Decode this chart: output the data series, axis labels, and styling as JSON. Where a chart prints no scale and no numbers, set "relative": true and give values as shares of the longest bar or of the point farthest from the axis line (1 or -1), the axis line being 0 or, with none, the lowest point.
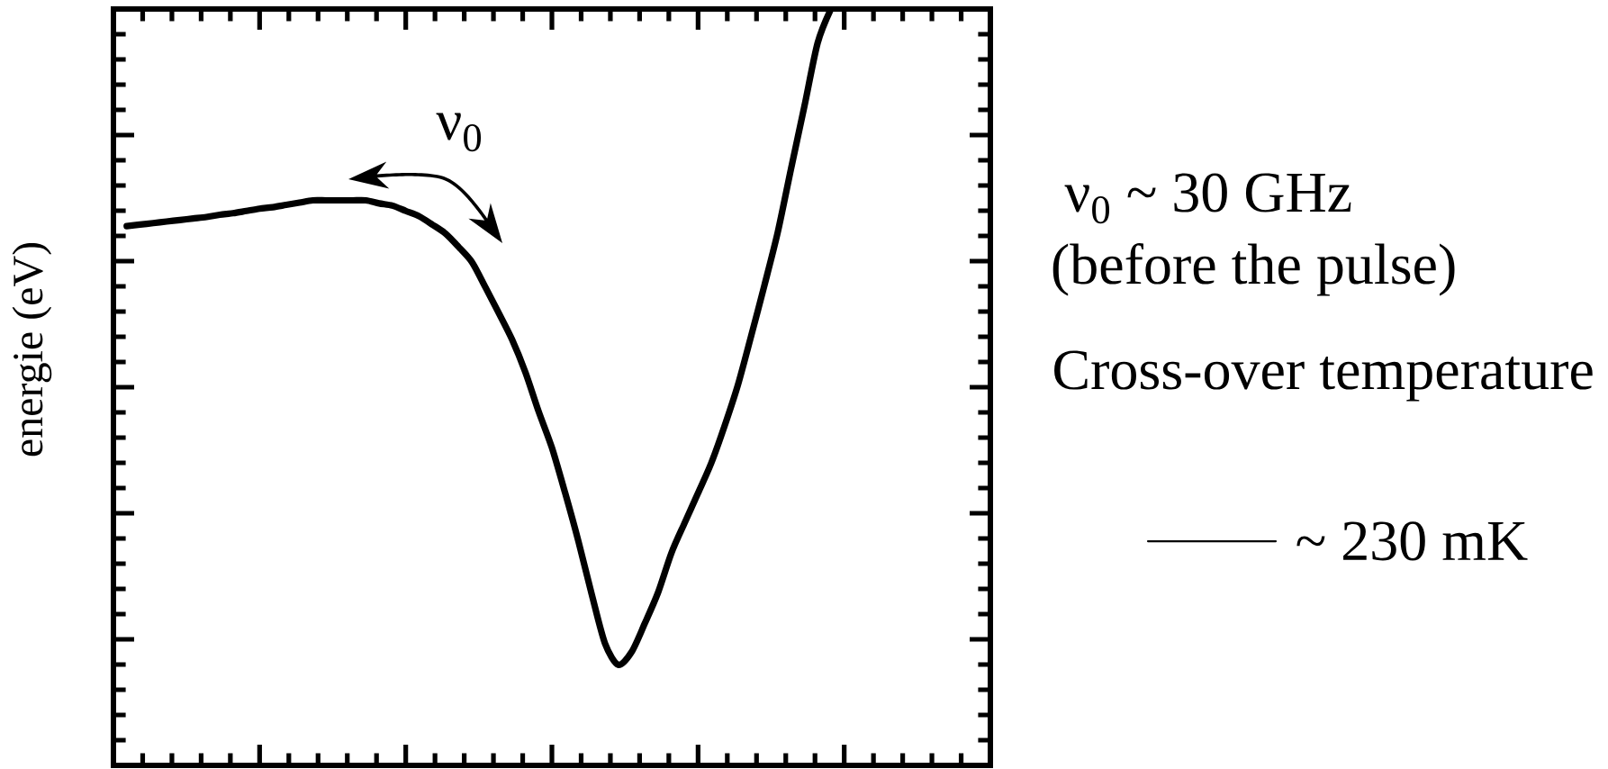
{
  "chart_data": {
    "type": "line",
    "relative": true,
    "ylabel": "energie (eV)",
    "tick_labels": false,
    "legend": "right",
    "annotations": [
      "ν$_{0}$",
      "ν$_{0}$ ~ 30 GHz",
      "(before the pulse)",
      "Cross-over temperature"
    ],
    "categories": [
      null,
      null,
      null,
      null,
      null,
      null,
      null,
      null,
      null,
      null,
      null,
      null,
      null,
      null,
      null,
      null,
      null,
      null,
      null,
      null,
      null,
      null,
      null,
      null,
      null,
      null,
      null,
      null,
      null,
      null,
      null,
      null,
      null,
      null,
      null,
      null,
      null,
      null,
      null,
      null,
      null,
      null,
      null,
      null,
      null,
      null,
      null,
      null,
      null,
      null,
      null,
      null,
      null,
      null,
      null,
      null,
      null,
      null,
      null,
      null,
      null,
      null,
      null,
      null,
      null,
      null,
      null
    ],
    "series": [
      {
        "name": "~ 230 mK",
        "color": "#000000",
        "values": [
          null,
          0.713,
          0.715,
          0.717,
          0.719,
          0.721,
          0.723,
          0.725,
          0.728,
          0.73,
          0.733,
          0.736,
          0.738,
          0.741,
          0.744,
          0.747,
          0.747,
          0.747,
          0.747,
          0.747,
          0.743,
          0.74,
          0.733,
          0.726,
          0.715,
          0.703,
          0.685,
          0.665,
          0.632,
          0.598,
          0.563,
          0.52,
          0.468,
          0.42,
          0.36,
          0.296,
          0.226,
          0.161,
          0.133,
          0.15,
          0.188,
          0.229,
          0.281,
          0.321,
          0.36,
          0.4,
          0.449,
          0.503,
          0.568,
          0.635,
          0.705,
          0.789,
          0.871,
          0.955,
          1,
          null,
          null,
          null,
          null,
          null,
          null,
          null,
          null,
          null,
          null,
          null,
          null
        ]
      }
    ]
  }
}
